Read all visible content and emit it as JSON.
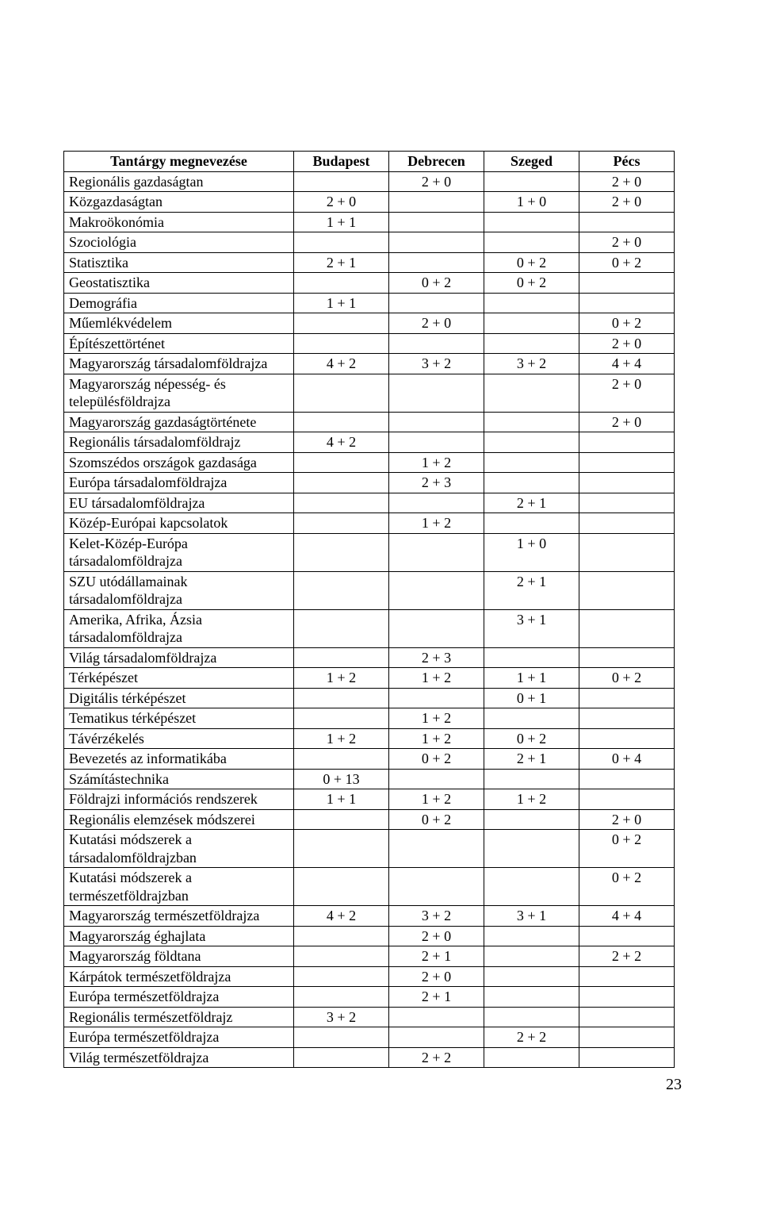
{
  "headers": [
    "Tantárgy megnevezése",
    "Budapest",
    "Debrecen",
    "Szeged",
    "Pécs"
  ],
  "rows": [
    [
      "Regionális gazdaságtan",
      "",
      "2 + 0",
      "",
      "2 + 0"
    ],
    [
      "Közgazdaságtan",
      "2 + 0",
      "",
      "1 + 0",
      "2 + 0"
    ],
    [
      "Makroökonómia",
      "1 + 1",
      "",
      "",
      ""
    ],
    [
      "Szociológia",
      "",
      "",
      "",
      "2 + 0"
    ],
    [
      "Statisztika",
      "2 + 1",
      "",
      "0 + 2",
      "0 + 2"
    ],
    [
      "Geostatisztika",
      "",
      "0 + 2",
      "0 + 2",
      ""
    ],
    [
      "Demográfia",
      "1 + 1",
      "",
      "",
      ""
    ],
    [
      "Műemlékvédelem",
      "",
      "2 + 0",
      "",
      "0 + 2"
    ],
    [
      "Építészettörténet",
      "",
      "",
      "",
      "2 + 0"
    ],
    [
      "Magyarország társadalomföldrajza",
      "4 + 2",
      "3 + 2",
      "3 + 2",
      "4 + 4"
    ],
    [
      "Magyarország népesség- és településföldrajza",
      "",
      "",
      "",
      "2 + 0"
    ],
    [
      "Magyarország gazdaságtörténete",
      "",
      "",
      "",
      "2 + 0"
    ],
    [
      "Regionális társadalomföldrajz",
      "4 + 2",
      "",
      "",
      ""
    ],
    [
      "Szomszédos országok gazdasága",
      "",
      "1 + 2",
      "",
      ""
    ],
    [
      "Európa társadalomföldrajza",
      "",
      "2 + 3",
      "",
      ""
    ],
    [
      "EU társadalomföldrajza",
      "",
      "",
      "2 + 1",
      ""
    ],
    [
      "Közép-Európai kapcsolatok",
      "",
      "1 + 2",
      "",
      ""
    ],
    [
      "Kelet-Közép-Európa társadalomföldrajza",
      "",
      "",
      "1 + 0",
      ""
    ],
    [
      "SZU utódállamainak társadalomföldrajza",
      "",
      "",
      "2 + 1",
      ""
    ],
    [
      "Amerika, Afrika, Ázsia társadalomföldrajza",
      "",
      "",
      "3 + 1",
      ""
    ],
    [
      "Világ társadalomföldrajza",
      "",
      "2 + 3",
      "",
      ""
    ],
    [
      "Térképészet",
      "1 + 2",
      "1 + 2",
      "1 + 1",
      "0 + 2"
    ],
    [
      "Digitális térképészet",
      "",
      "",
      "0 + 1",
      ""
    ],
    [
      "Tematikus térképészet",
      "",
      "1 + 2",
      "",
      ""
    ],
    [
      "Távérzékelés",
      "1 + 2",
      "1 + 2",
      "0 + 2",
      ""
    ],
    [
      "Bevezetés az informatikába",
      "",
      "0 + 2",
      "2 + 1",
      "0 + 4"
    ],
    [
      "Számítástechnika",
      "0 + 13",
      "",
      "",
      ""
    ],
    [
      "Földrajzi információs rendszerek",
      "1 + 1",
      "1 + 2",
      "1 + 2",
      ""
    ],
    [
      "Regionális elemzések módszerei",
      "",
      "0 + 2",
      "",
      "2 + 0"
    ],
    [
      "Kutatási módszerek a társadalomföldrajzban",
      "",
      "",
      "",
      "0 + 2"
    ],
    [
      "Kutatási módszerek a természetföldrajzban",
      "",
      "",
      "",
      "0 + 2"
    ],
    [
      "Magyarország természetföldrajza",
      "4 + 2",
      "3 + 2",
      "3 + 1",
      "4 + 4"
    ],
    [
      "Magyarország éghajlata",
      "",
      "2 + 0",
      "",
      ""
    ],
    [
      "Magyarország földtana",
      "",
      "2 + 1",
      "",
      "2 + 2"
    ],
    [
      "Kárpátok természetföldrajza",
      "",
      "2 + 0",
      "",
      ""
    ],
    [
      "Európa természetföldrajza",
      "",
      "2 + 1",
      "",
      ""
    ],
    [
      "Regionális természetföldrajz",
      "3 + 2",
      "",
      "",
      ""
    ],
    [
      "Európa természetföldrajza",
      "",
      "",
      "2 + 2",
      ""
    ],
    [
      "Világ természetföldrajza",
      "",
      "2 + 2",
      "",
      ""
    ]
  ],
  "page_number": "23"
}
